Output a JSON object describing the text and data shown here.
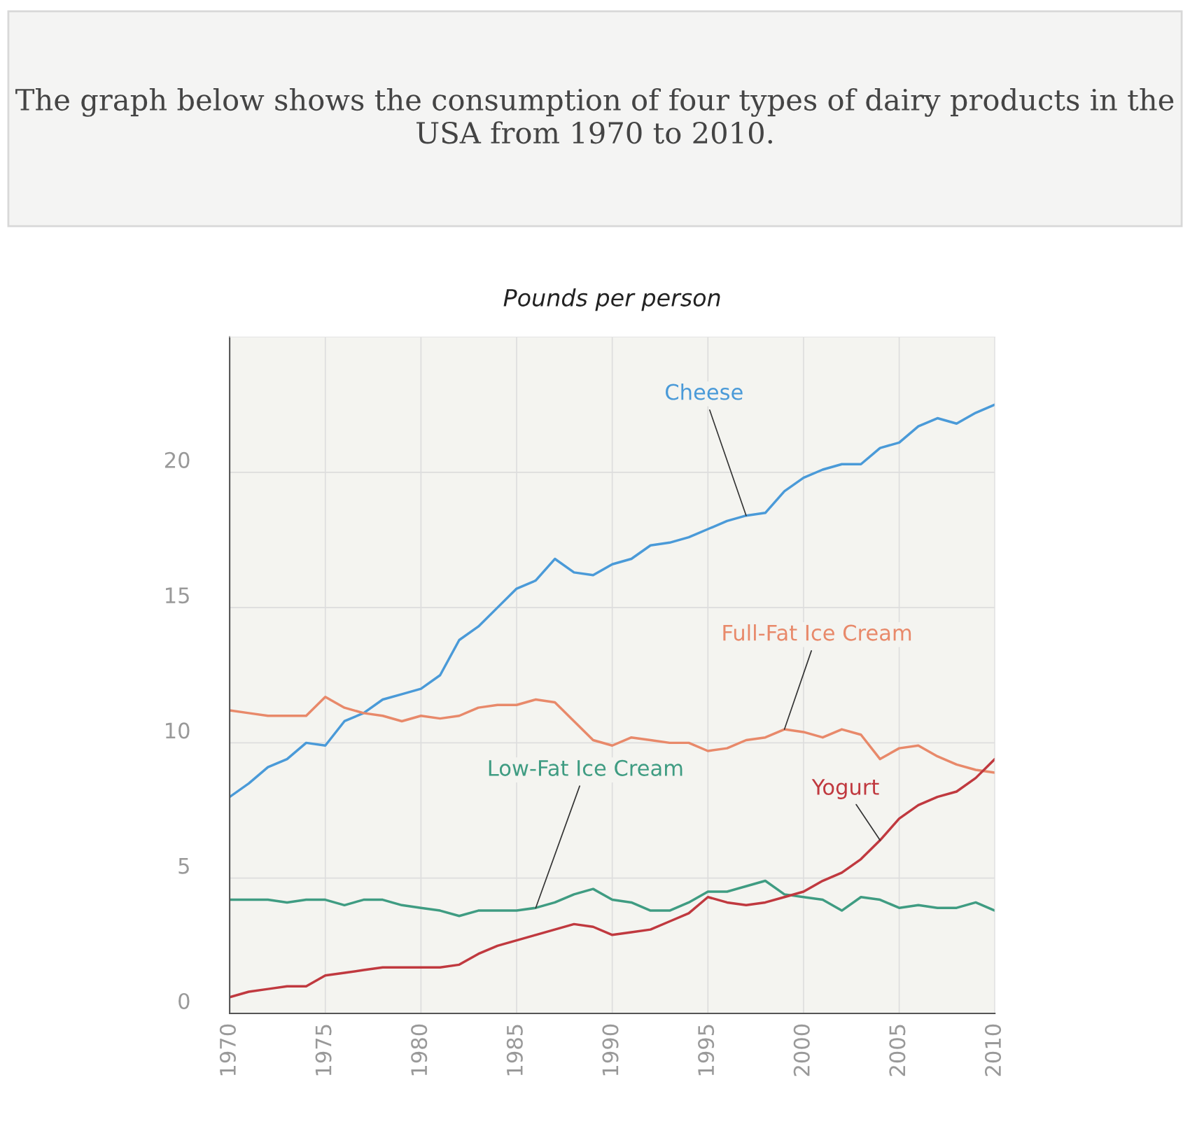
{
  "chart_data": {
    "type": "line",
    "title": "The graph below shows the consumption of four types of dairy products in the USA from 1970 to 2010.",
    "subtitle": "Pounds per person",
    "x": [
      1970,
      1971,
      1972,
      1973,
      1974,
      1975,
      1976,
      1977,
      1978,
      1979,
      1980,
      1981,
      1982,
      1983,
      1984,
      1985,
      1986,
      1987,
      1988,
      1989,
      1990,
      1991,
      1992,
      1993,
      1994,
      1995,
      1996,
      1997,
      1998,
      1999,
      2000,
      2001,
      2002,
      2003,
      2004,
      2005,
      2006,
      2007,
      2008,
      2009,
      2010
    ],
    "series": [
      {
        "name": "Cheese",
        "color": "#4a9ad8",
        "values": [
          8.0,
          8.5,
          9.1,
          9.4,
          10.0,
          9.9,
          10.8,
          11.1,
          11.6,
          11.8,
          12.0,
          12.5,
          13.8,
          14.3,
          15.0,
          15.7,
          16.0,
          16.8,
          16.3,
          16.2,
          16.6,
          16.8,
          17.3,
          17.4,
          17.6,
          17.9,
          18.2,
          18.4,
          18.5,
          19.3,
          19.8,
          20.1,
          20.3,
          20.3,
          20.9,
          21.1,
          21.7,
          22.0,
          21.8,
          22.2,
          22.5
        ]
      },
      {
        "name": "Full-Fat Ice Cream",
        "color": "#e8896a",
        "values": [
          11.2,
          11.1,
          11.0,
          11.0,
          11.0,
          11.7,
          11.3,
          11.1,
          11.0,
          10.8,
          11.0,
          10.9,
          11.0,
          11.3,
          11.4,
          11.4,
          11.6,
          11.5,
          10.8,
          10.1,
          9.9,
          10.2,
          10.1,
          10.0,
          10.0,
          9.7,
          9.8,
          10.1,
          10.2,
          10.5,
          10.4,
          10.2,
          10.5,
          10.3,
          9.4,
          9.8,
          9.9,
          9.5,
          9.2,
          9.0,
          8.9
        ]
      },
      {
        "name": "Low-Fat Ice Cream",
        "color": "#3f9c82",
        "values": [
          4.2,
          4.2,
          4.2,
          4.1,
          4.2,
          4.2,
          4.0,
          4.2,
          4.2,
          4.0,
          3.9,
          3.8,
          3.6,
          3.8,
          3.8,
          3.8,
          3.9,
          4.1,
          4.4,
          4.6,
          4.2,
          4.1,
          3.8,
          3.8,
          4.1,
          4.5,
          4.5,
          4.7,
          4.9,
          4.4,
          4.3,
          4.2,
          3.8,
          4.3,
          4.2,
          3.9,
          4.0,
          3.9,
          3.9,
          4.1,
          3.8
        ]
      },
      {
        "name": "Yogurt",
        "color": "#c0393f",
        "values": [
          0.6,
          0.8,
          0.9,
          1.0,
          1.0,
          1.4,
          1.5,
          1.6,
          1.7,
          1.7,
          1.7,
          1.7,
          1.8,
          2.2,
          2.5,
          2.7,
          2.9,
          3.1,
          3.3,
          3.2,
          2.9,
          3.0,
          3.1,
          3.4,
          3.7,
          4.3,
          4.1,
          4.0,
          4.1,
          4.3,
          4.5,
          4.9,
          5.2,
          5.7,
          6.4,
          7.2,
          7.7,
          8.0,
          8.2,
          8.7,
          9.4
        ]
      }
    ],
    "xlim": [
      1970,
      2010
    ],
    "xticks": [
      1970,
      1975,
      1980,
      1985,
      1990,
      1995,
      2000,
      2005,
      2010
    ],
    "ylim": [
      0,
      25
    ],
    "yticks": [
      0,
      5,
      10,
      15,
      20
    ],
    "grid": true,
    "legend": false,
    "marker": "none",
    "line_style": "solid"
  }
}
